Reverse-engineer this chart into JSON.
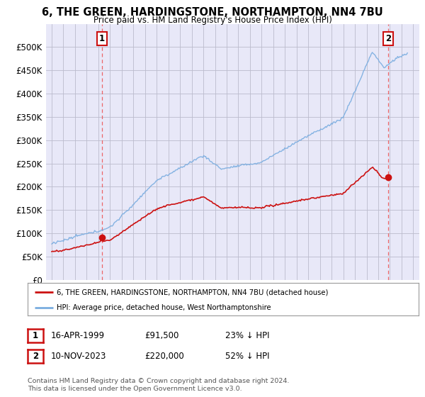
{
  "title": "6, THE GREEN, HARDINGSTONE, NORTHAMPTON, NN4 7BU",
  "subtitle": "Price paid vs. HM Land Registry's House Price Index (HPI)",
  "ytick_values": [
    0,
    50000,
    100000,
    150000,
    200000,
    250000,
    300000,
    350000,
    400000,
    450000,
    500000
  ],
  "xlim_start": 1994.5,
  "xlim_end": 2026.5,
  "ylim_min": 0,
  "ylim_max": 550000,
  "hpi_color": "#7aade0",
  "price_color": "#cc1111",
  "marker1_year": 1999.29,
  "marker1_price": 91500,
  "marker1_label": "1",
  "marker2_year": 2023.87,
  "marker2_price": 220000,
  "marker2_label": "2",
  "legend_line1": "6, THE GREEN, HARDINGSTONE, NORTHAMPTON, NN4 7BU (detached house)",
  "legend_line2": "HPI: Average price, detached house, West Northamptonshire",
  "footnote": "Contains HM Land Registry data © Crown copyright and database right 2024.\nThis data is licensed under the Open Government Licence v3.0.",
  "grid_color": "#bbbbcc",
  "background_color": "#ffffff",
  "plot_bg_color": "#e8e8f8",
  "dashed_color": "#ee4444",
  "table_row1": [
    "1",
    "16-APR-1999",
    "£91,500",
    "23% ↓ HPI"
  ],
  "table_row2": [
    "2",
    "10-NOV-2023",
    "£220,000",
    "52% ↓ HPI"
  ]
}
